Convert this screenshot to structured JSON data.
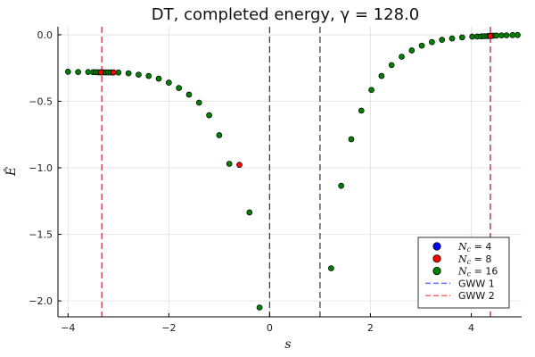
{
  "chart_data": {
    "type": "scatter",
    "title": "DT, completed energy, γ = 128.0",
    "xlabel": "s",
    "ylabel": "Ê",
    "xlim": [
      -4.2,
      5.0
    ],
    "ylim": [
      -2.12,
      0.06
    ],
    "xticks": [
      -4,
      -2,
      0,
      2,
      4
    ],
    "xtick_labels": [
      "−4",
      "−2",
      "0",
      "2",
      "4"
    ],
    "yticks": [
      0.0,
      -0.5,
      -1.0,
      -1.5,
      -2.0
    ],
    "ytick_labels": [
      "0.0",
      "−0.5",
      "−1.0",
      "−1.5",
      "−2.0"
    ],
    "grid": true,
    "legend_position": "bottom-right",
    "vlines": [
      {
        "x": 0,
        "color": "#404040",
        "style": "dashed"
      },
      {
        "x": 1,
        "color": "#404040",
        "style": "dashed"
      },
      {
        "x": -3.33,
        "color": "#d0303e",
        "style": "dashed"
      },
      {
        "x": 4.38,
        "color": "#b02050",
        "style": "dashed"
      }
    ],
    "series": [
      {
        "name": "N_c = 4",
        "legend_prefix": "N",
        "legend_sub": "c",
        "legend_value": "4",
        "color": "#0000ff",
        "kind": "scatter",
        "points": []
      },
      {
        "name": "N_c = 8",
        "legend_prefix": "N",
        "legend_sub": "c",
        "legend_value": "8",
        "color": "#ff0000",
        "kind": "scatter",
        "points": [
          [
            -3.35,
            -0.283
          ],
          [
            -3.1,
            -0.283
          ],
          [
            -0.6,
            -0.978
          ],
          [
            4.38,
            -0.01
          ]
        ]
      },
      {
        "name": "N_c = 16",
        "legend_prefix": "N",
        "legend_sub": "c",
        "legend_value": "16",
        "color": "#008000",
        "kind": "scatter",
        "points": [
          [
            -4.0,
            -0.278
          ],
          [
            -3.8,
            -0.28
          ],
          [
            -3.6,
            -0.28
          ],
          [
            -3.5,
            -0.281
          ],
          [
            -3.45,
            -0.281
          ],
          [
            -3.4,
            -0.282
          ],
          [
            -3.35,
            -0.282
          ],
          [
            -3.3,
            -0.282
          ],
          [
            -3.25,
            -0.283
          ],
          [
            -3.2,
            -0.283
          ],
          [
            -3.15,
            -0.283
          ],
          [
            -3.1,
            -0.284
          ],
          [
            -3.0,
            -0.284
          ],
          [
            -2.8,
            -0.29
          ],
          [
            -2.6,
            -0.3
          ],
          [
            -2.4,
            -0.31
          ],
          [
            -2.2,
            -0.33
          ],
          [
            -2.0,
            -0.36
          ],
          [
            -1.8,
            -0.4
          ],
          [
            -1.6,
            -0.45
          ],
          [
            -1.4,
            -0.51
          ],
          [
            -1.2,
            -0.605
          ],
          [
            -1.0,
            -0.755
          ],
          [
            -0.8,
            -0.97
          ],
          [
            -0.4,
            -1.335
          ],
          [
            -0.2,
            -2.05
          ],
          [
            1.22,
            -1.755
          ],
          [
            1.42,
            -1.135
          ],
          [
            1.62,
            -0.785
          ],
          [
            1.82,
            -0.57
          ],
          [
            2.02,
            -0.415
          ],
          [
            2.22,
            -0.31
          ],
          [
            2.42,
            -0.228
          ],
          [
            2.62,
            -0.165
          ],
          [
            2.82,
            -0.118
          ],
          [
            3.02,
            -0.082
          ],
          [
            3.22,
            -0.055
          ],
          [
            3.42,
            -0.038
          ],
          [
            3.62,
            -0.028
          ],
          [
            3.82,
            -0.02
          ],
          [
            4.02,
            -0.014
          ],
          [
            4.12,
            -0.013
          ],
          [
            4.2,
            -0.012
          ],
          [
            4.26,
            -0.011
          ],
          [
            4.32,
            -0.01
          ],
          [
            4.36,
            -0.009
          ],
          [
            4.4,
            -0.008
          ],
          [
            4.44,
            -0.007
          ],
          [
            4.5,
            -0.006
          ],
          [
            4.6,
            -0.005
          ],
          [
            4.7,
            -0.004
          ],
          [
            4.82,
            -0.003
          ],
          [
            4.92,
            -0.002
          ]
        ]
      },
      {
        "name": "GWW 1",
        "color": "#6b6bff",
        "kind": "line",
        "points": []
      },
      {
        "name": "GWW 2",
        "color": "#ff6b6b",
        "kind": "line",
        "points": []
      }
    ]
  }
}
